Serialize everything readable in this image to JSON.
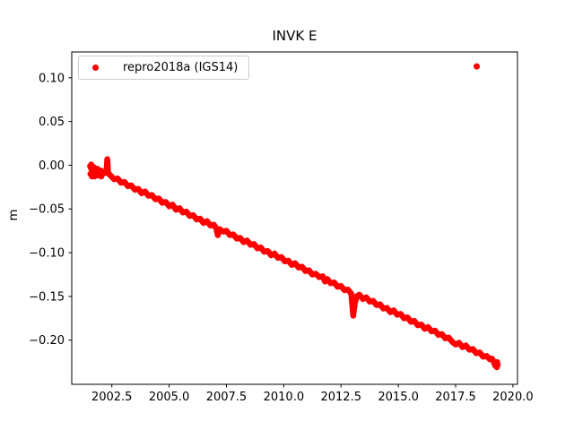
{
  "accent_color": "#ff0000",
  "chart_data": {
    "type": "scatter",
    "title": "INVK E",
    "xlabel": "",
    "ylabel": "m",
    "series_name": "repro2018a (IGS14)",
    "color": "#ff0000",
    "legend_position": "upper left",
    "grid": false,
    "xlim": [
      2000.75,
      2020.2
    ],
    "ylim": [
      -0.2505,
      0.1295
    ],
    "xticks": [
      {
        "v": 2002.5,
        "label": "2002.5"
      },
      {
        "v": 2005.0,
        "label": "2005.0"
      },
      {
        "v": 2007.5,
        "label": "2007.5"
      },
      {
        "v": 2010.0,
        "label": "2010.0"
      },
      {
        "v": 2012.5,
        "label": "2012.5"
      },
      {
        "v": 2015.0,
        "label": "2015.0"
      },
      {
        "v": 2017.5,
        "label": "2017.5"
      },
      {
        "v": 2020.0,
        "label": "2020.0"
      }
    ],
    "yticks": [
      {
        "v": 0.1,
        "label": "0.10"
      },
      {
        "v": 0.05,
        "label": "0.05"
      },
      {
        "v": 0.0,
        "label": "0.00"
      },
      {
        "v": -0.05,
        "label": "−0.05"
      },
      {
        "v": -0.1,
        "label": "−0.10"
      },
      {
        "v": -0.15,
        "label": "−0.15"
      },
      {
        "v": -0.2,
        "label": "−0.20"
      }
    ],
    "band_points": [
      [
        2001.55,
        -0.001
      ],
      [
        2001.62,
        -0.005
      ],
      [
        2001.7,
        -0.002
      ],
      [
        2001.78,
        -0.006
      ],
      [
        2001.86,
        -0.004
      ],
      [
        2001.94,
        -0.008
      ],
      [
        2002.02,
        -0.006
      ],
      [
        2002.1,
        -0.01
      ],
      [
        2002.18,
        -0.008
      ],
      [
        2002.26,
        -0.009
      ],
      [
        2002.3,
        0.007
      ],
      [
        2002.34,
        -0.009
      ],
      [
        2002.45,
        -0.012
      ],
      [
        2002.6,
        -0.016
      ],
      [
        2002.75,
        -0.015
      ],
      [
        2002.9,
        -0.02
      ],
      [
        2003.05,
        -0.019
      ],
      [
        2003.2,
        -0.024
      ],
      [
        2003.35,
        -0.023
      ],
      [
        2003.5,
        -0.028
      ],
      [
        2003.65,
        -0.027
      ],
      [
        2003.8,
        -0.032
      ],
      [
        2003.95,
        -0.03
      ],
      [
        2004.1,
        -0.035
      ],
      [
        2004.25,
        -0.034
      ],
      [
        2004.4,
        -0.039
      ],
      [
        2004.55,
        -0.038
      ],
      [
        2004.7,
        -0.043
      ],
      [
        2004.85,
        -0.042
      ],
      [
        2005.0,
        -0.047
      ],
      [
        2005.15,
        -0.045
      ],
      [
        2005.3,
        -0.051
      ],
      [
        2005.45,
        -0.049
      ],
      [
        2005.6,
        -0.054
      ],
      [
        2005.75,
        -0.053
      ],
      [
        2005.9,
        -0.058
      ],
      [
        2006.05,
        -0.057
      ],
      [
        2006.2,
        -0.062
      ],
      [
        2006.35,
        -0.061
      ],
      [
        2006.5,
        -0.066
      ],
      [
        2006.65,
        -0.064
      ],
      [
        2006.8,
        -0.069
      ],
      [
        2006.95,
        -0.068
      ],
      [
        2007.05,
        -0.072
      ],
      [
        2007.12,
        -0.08
      ],
      [
        2007.2,
        -0.073
      ],
      [
        2007.35,
        -0.076
      ],
      [
        2007.5,
        -0.075
      ],
      [
        2007.65,
        -0.08
      ],
      [
        2007.8,
        -0.079
      ],
      [
        2007.95,
        -0.084
      ],
      [
        2008.1,
        -0.083
      ],
      [
        2008.25,
        -0.088
      ],
      [
        2008.4,
        -0.086
      ],
      [
        2008.55,
        -0.091
      ],
      [
        2008.7,
        -0.09
      ],
      [
        2008.85,
        -0.095
      ],
      [
        2009.0,
        -0.094
      ],
      [
        2009.15,
        -0.099
      ],
      [
        2009.3,
        -0.098
      ],
      [
        2009.45,
        -0.103
      ],
      [
        2009.6,
        -0.101
      ],
      [
        2009.75,
        -0.106
      ],
      [
        2009.9,
        -0.105
      ],
      [
        2010.05,
        -0.11
      ],
      [
        2010.2,
        -0.109
      ],
      [
        2010.35,
        -0.114
      ],
      [
        2010.5,
        -0.112
      ],
      [
        2010.65,
        -0.117
      ],
      [
        2010.8,
        -0.116
      ],
      [
        2010.95,
        -0.121
      ],
      [
        2011.1,
        -0.12
      ],
      [
        2011.25,
        -0.125
      ],
      [
        2011.4,
        -0.124
      ],
      [
        2011.55,
        -0.128
      ],
      [
        2011.7,
        -0.127
      ],
      [
        2011.8,
        -0.133
      ],
      [
        2011.9,
        -0.13
      ],
      [
        2012.05,
        -0.135
      ],
      [
        2012.2,
        -0.134
      ],
      [
        2012.35,
        -0.139
      ],
      [
        2012.5,
        -0.138
      ],
      [
        2012.65,
        -0.143
      ],
      [
        2012.8,
        -0.142
      ],
      [
        2012.95,
        -0.147
      ],
      [
        2013.03,
        -0.172
      ],
      [
        2013.1,
        -0.158
      ],
      [
        2013.18,
        -0.15
      ],
      [
        2013.3,
        -0.148
      ],
      [
        2013.45,
        -0.153
      ],
      [
        2013.6,
        -0.151
      ],
      [
        2013.75,
        -0.156
      ],
      [
        2013.9,
        -0.155
      ],
      [
        2014.05,
        -0.16
      ],
      [
        2014.2,
        -0.159
      ],
      [
        2014.35,
        -0.164
      ],
      [
        2014.5,
        -0.163
      ],
      [
        2014.65,
        -0.168
      ],
      [
        2014.8,
        -0.166
      ],
      [
        2014.95,
        -0.171
      ],
      [
        2015.1,
        -0.17
      ],
      [
        2015.25,
        -0.175
      ],
      [
        2015.4,
        -0.174
      ],
      [
        2015.55,
        -0.179
      ],
      [
        2015.7,
        -0.178
      ],
      [
        2015.85,
        -0.183
      ],
      [
        2016.0,
        -0.182
      ],
      [
        2016.15,
        -0.187
      ],
      [
        2016.3,
        -0.185
      ],
      [
        2016.45,
        -0.19
      ],
      [
        2016.6,
        -0.189
      ],
      [
        2016.75,
        -0.194
      ],
      [
        2016.9,
        -0.193
      ],
      [
        2017.05,
        -0.198
      ],
      [
        2017.2,
        -0.197
      ],
      [
        2017.35,
        -0.202
      ],
      [
        2017.5,
        -0.205
      ],
      [
        2017.65,
        -0.203
      ],
      [
        2017.8,
        -0.208
      ],
      [
        2017.95,
        -0.206
      ],
      [
        2018.1,
        -0.211
      ],
      [
        2018.25,
        -0.21
      ],
      [
        2018.4,
        -0.215
      ],
      [
        2018.55,
        -0.214
      ],
      [
        2018.7,
        -0.219
      ],
      [
        2018.85,
        -0.218
      ],
      [
        2019.0,
        -0.222
      ],
      [
        2019.08,
        -0.221
      ],
      [
        2019.15,
        -0.224
      ],
      [
        2019.22,
        -0.229
      ],
      [
        2019.3,
        -0.231
      ],
      [
        2019.34,
        -0.228
      ]
    ],
    "scatter_points": [
      [
        2001.56,
        -0.01
      ],
      [
        2001.6,
        0.001
      ],
      [
        2001.63,
        -0.013
      ],
      [
        2001.68,
        -0.011
      ],
      [
        2001.74,
        -0.013
      ],
      [
        2001.8,
        -0.011
      ],
      [
        2001.92,
        -0.012
      ],
      [
        2002.04,
        -0.013
      ],
      [
        2002.29,
        0.003
      ],
      [
        2002.31,
        0.0
      ],
      [
        2007.12,
        -0.077
      ],
      [
        2013.02,
        -0.165
      ],
      [
        2013.04,
        -0.159
      ],
      [
        2019.32,
        -0.225
      ]
    ],
    "outlier": [
      2018.42,
      0.113
    ]
  }
}
